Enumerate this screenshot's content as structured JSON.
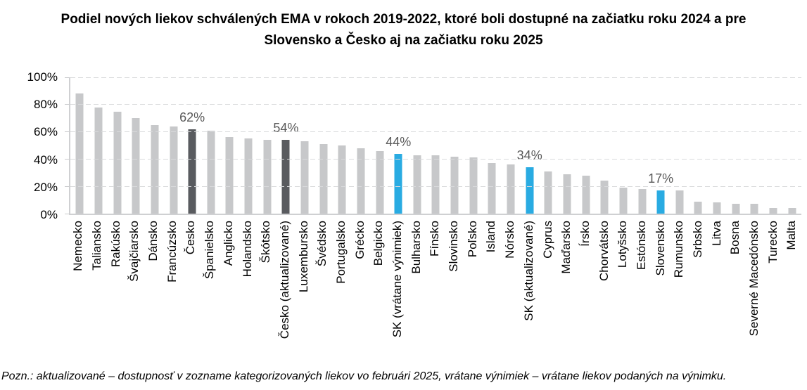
{
  "title_lines": [
    "Podiel nových liekov schválených EMA v rokoch 2019-2022, ktoré boli dostupné na začiatku roku 2024 a pre",
    "Slovensko a Česko aj na začiatku roku 2025"
  ],
  "footnote": "Pozn.: aktualizované – dostupnosť v zozname kategorizovaných liekov vo februári 2025, vrátane výnimiek – vrátane liekov podaných na výnimku.",
  "y_axis": {
    "ticks": [
      "100%",
      "80%",
      "60%",
      "40%",
      "20%",
      "0%"
    ]
  },
  "colors": {
    "bar_gray": "#c7c8ca",
    "bar_dark": "#595b5f",
    "bar_blue": "#29abe2",
    "gridline": "#d9dadc",
    "axis_line": "#cfd0d2",
    "value_label_text": "#595959"
  },
  "chart_data": {
    "type": "bar",
    "title": "Podiel nových liekov schválených EMA v rokoch 2019-2022, ktoré boli dostupné na začiatku roku 2024 a pre Slovensko a Česko aj na začiatku roku 2025",
    "xlabel": "",
    "ylabel": "",
    "ylim": [
      0,
      100
    ],
    "grid": "horizontal-dashed",
    "legend": "none",
    "bars": [
      {
        "name": "Nemecko",
        "value": 88,
        "color": "gray"
      },
      {
        "name": "Taliansko",
        "value": 78,
        "color": "gray"
      },
      {
        "name": "Rakúsko",
        "value": 75,
        "color": "gray"
      },
      {
        "name": "Švajčiarsko",
        "value": 70,
        "color": "gray"
      },
      {
        "name": "Dánsko",
        "value": 65,
        "color": "gray"
      },
      {
        "name": "Francúzsko",
        "value": 64,
        "color": "gray"
      },
      {
        "name": "Česko",
        "value": 62,
        "color": "dark",
        "label": "62%"
      },
      {
        "name": "Španielsko",
        "value": 61,
        "color": "gray"
      },
      {
        "name": "Anglicko",
        "value": 56,
        "color": "gray"
      },
      {
        "name": "Holandsko",
        "value": 55,
        "color": "gray"
      },
      {
        "name": "Škótsko",
        "value": 54,
        "color": "gray"
      },
      {
        "name": "Česko (aktualizované)",
        "value": 54,
        "color": "dark",
        "label": "54%"
      },
      {
        "name": "Luxembursko",
        "value": 53,
        "color": "gray"
      },
      {
        "name": "Švédsko",
        "value": 51,
        "color": "gray"
      },
      {
        "name": "Portugalsko",
        "value": 50,
        "color": "gray"
      },
      {
        "name": "Grécko",
        "value": 48,
        "color": "gray"
      },
      {
        "name": "Belgicko",
        "value": 46,
        "color": "gray"
      },
      {
        "name": "SK (vrátane výnimiek)",
        "value": 44,
        "color": "blue",
        "label": "44%"
      },
      {
        "name": "Bulharsko",
        "value": 43,
        "color": "gray"
      },
      {
        "name": "Fínsko",
        "value": 43,
        "color": "gray"
      },
      {
        "name": "Slovinsko",
        "value": 42,
        "color": "gray"
      },
      {
        "name": "Poľsko",
        "value": 41,
        "color": "gray"
      },
      {
        "name": "Island",
        "value": 37,
        "color": "gray"
      },
      {
        "name": "Nórsko",
        "value": 36,
        "color": "gray"
      },
      {
        "name": "SK (aktualizované)",
        "value": 34,
        "color": "blue",
        "label": "34%"
      },
      {
        "name": "Cyprus",
        "value": 31,
        "color": "gray"
      },
      {
        "name": "Maďarsko",
        "value": 29,
        "color": "gray"
      },
      {
        "name": "Írsko",
        "value": 28,
        "color": "gray"
      },
      {
        "name": "Chorvátsko",
        "value": 24,
        "color": "gray"
      },
      {
        "name": "Lotyšsko",
        "value": 19,
        "color": "gray"
      },
      {
        "name": "Estónsko",
        "value": 18,
        "color": "gray"
      },
      {
        "name": "Slovensko",
        "value": 17,
        "color": "blue",
        "label": "17%"
      },
      {
        "name": "Rumunsko",
        "value": 17,
        "color": "gray"
      },
      {
        "name": "Srbsko",
        "value": 9,
        "color": "gray"
      },
      {
        "name": "Litva",
        "value": 8,
        "color": "gray"
      },
      {
        "name": "Bosna",
        "value": 7,
        "color": "gray"
      },
      {
        "name": "Severné Macedónsko",
        "value": 7,
        "color": "gray"
      },
      {
        "name": "Turecko",
        "value": 4,
        "color": "gray"
      },
      {
        "name": "Malta",
        "value": 4,
        "color": "gray"
      }
    ]
  }
}
